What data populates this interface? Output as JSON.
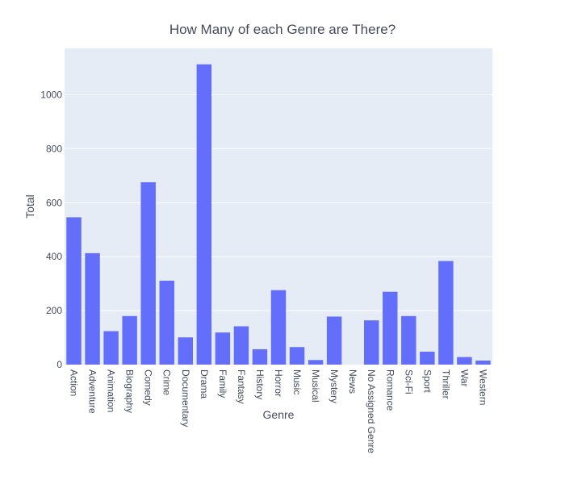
{
  "chart_data": {
    "type": "bar",
    "title": "How Many of each Genre are There?",
    "xlabel": "Genre",
    "ylabel": "Total",
    "categories": [
      "Action",
      "Adventure",
      "Animation",
      "Biography",
      "Comedy",
      "Crime",
      "Documentary",
      "Drama",
      "Family",
      "Fantasy",
      "History",
      "Horror",
      "Music",
      "Musical",
      "Mystery",
      "News",
      "No Assigned Genre",
      "Romance",
      "Sci-Fi",
      "Sport",
      "Thriller",
      "War",
      "Western"
    ],
    "values": [
      546,
      413,
      124,
      180,
      676,
      311,
      101,
      1113,
      119,
      142,
      57,
      276,
      65,
      17,
      178,
      0,
      164,
      270,
      180,
      48,
      384,
      28,
      15
    ],
    "ylim": [
      0,
      1172
    ],
    "yticks": [
      0,
      200,
      400,
      600,
      800,
      1000
    ],
    "grid": true,
    "colors": {
      "bar": "#636efa",
      "plot_bg": "#e5ecf6",
      "grid": "#ffffff",
      "text": "#444b5c"
    }
  }
}
